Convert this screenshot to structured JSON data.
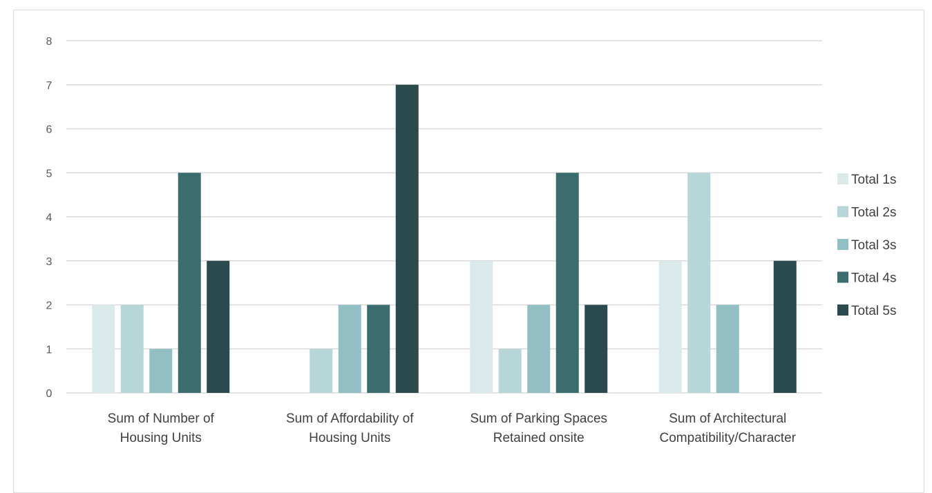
{
  "chart_data": {
    "type": "bar",
    "title": "",
    "xlabel": "",
    "ylabel": "",
    "ylim": [
      0,
      8
    ],
    "yticks": [
      0,
      1,
      2,
      3,
      4,
      5,
      6,
      7,
      8
    ],
    "grid": true,
    "legend_position": "right",
    "categories": [
      [
        "Sum of Number of",
        "Housing Units"
      ],
      [
        "Sum of Affordability of",
        "Housing Units"
      ],
      [
        "Sum of Parking Spaces",
        "Retained onsite"
      ],
      [
        "Sum of Architectural",
        "Compatibility/Character"
      ]
    ],
    "series": [
      {
        "name": "Total 1s",
        "color": "#dae9ea",
        "values": [
          2,
          0,
          3,
          3
        ]
      },
      {
        "name": "Total 2s",
        "color": "#b6d6d8",
        "values": [
          2,
          1,
          1,
          5
        ]
      },
      {
        "name": "Total 3s",
        "color": "#91bfc3",
        "values": [
          1,
          2,
          2,
          2
        ]
      },
      {
        "name": "Total 4s",
        "color": "#3b6d6e",
        "values": [
          5,
          2,
          5,
          0
        ]
      },
      {
        "name": "Total 5s",
        "color": "#2a4a4d",
        "values": [
          3,
          7,
          2,
          3
        ]
      }
    ]
  }
}
